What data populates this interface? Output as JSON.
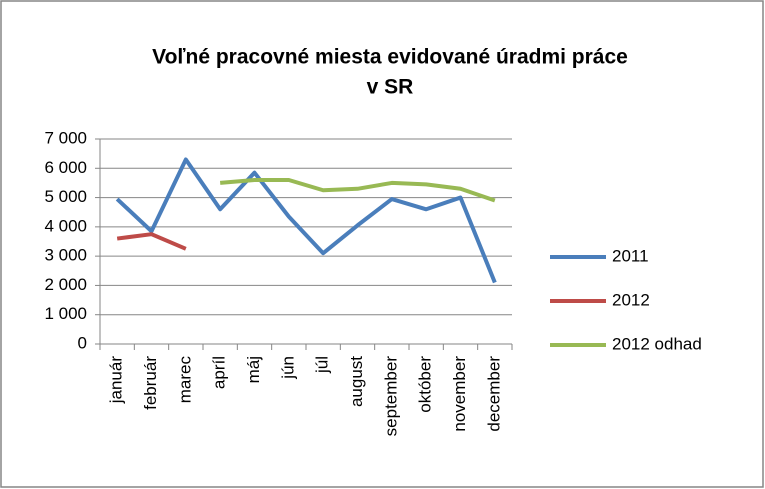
{
  "chart_data": {
    "type": "line",
    "title": [
      "Voľné pracovné miesta evidované úradmi práce",
      "v SR"
    ],
    "categories": [
      "január",
      "február",
      "marec",
      "apríl",
      "máj",
      "jún",
      "júl",
      "august",
      "september",
      "október",
      "november",
      "december"
    ],
    "series": [
      {
        "name": "2011",
        "color": "#4a7ebb",
        "values": [
          4950,
          3850,
          6300,
          4600,
          5850,
          4350,
          3100,
          4050,
          4950,
          4600,
          5000,
          2100
        ]
      },
      {
        "name": "2012",
        "color": "#be4b48",
        "values": [
          3600,
          3750,
          3250,
          null,
          null,
          null,
          null,
          null,
          null,
          null,
          null,
          null
        ]
      },
      {
        "name": "2012 odhad",
        "color": "#98b954",
        "values": [
          null,
          null,
          null,
          5500,
          5600,
          5600,
          5250,
          5300,
          5500,
          5450,
          5300,
          4900
        ]
      }
    ],
    "ylim": [
      0,
      7000
    ],
    "yticks": [
      0,
      {
        "value": 1000,
        "label": "1 000"
      },
      {
        "value": 2000,
        "label": "2 000"
      },
      {
        "value": 3000,
        "label": "3 000"
      },
      {
        "value": 4000,
        "label": "4 000"
      },
      {
        "value": 5000,
        "label": "5 000"
      },
      {
        "value": 6000,
        "label": "6 000"
      },
      {
        "value": 7000,
        "label": "7 000"
      }
    ],
    "grid": true,
    "legend": "right"
  }
}
